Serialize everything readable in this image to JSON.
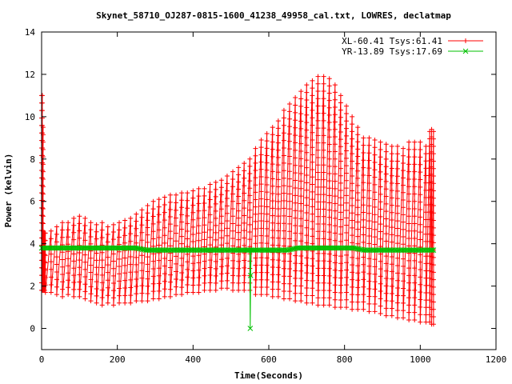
{
  "chart_data": {
    "type": "line",
    "title": "Skynet_58710_OJ287-0815-1600_41238_49958_cal.txt, LOWRES, declatmap",
    "xlabel": "Time(Seconds)",
    "ylabel": "Power (kelvin)",
    "xlim": [
      0,
      1200
    ],
    "ylim": [
      -1,
      14
    ],
    "x_ticks": [
      "0",
      "200",
      "400",
      "600",
      "800",
      "1000",
      "1200"
    ],
    "y_ticks": [
      "0",
      "2",
      "4",
      "6",
      "8",
      "10",
      "12",
      "14"
    ],
    "grid": false,
    "legend_position": "top-right",
    "series": [
      {
        "name": "XL-60.41 Tsys:61.41",
        "color": "#ff0000",
        "marker": "plus",
        "x": [
          0,
          2,
          4,
          6,
          8,
          10,
          25,
          40,
          55,
          70,
          85,
          100,
          115,
          130,
          145,
          160,
          175,
          190,
          205,
          220,
          235,
          250,
          265,
          280,
          295,
          310,
          325,
          340,
          355,
          370,
          385,
          400,
          415,
          430,
          445,
          460,
          475,
          490,
          505,
          520,
          535,
          550,
          565,
          580,
          595,
          610,
          625,
          640,
          655,
          670,
          685,
          700,
          715,
          730,
          745,
          760,
          775,
          790,
          805,
          820,
          835,
          850,
          865,
          880,
          895,
          910,
          925,
          940,
          955,
          970,
          985,
          1000,
          1015,
          1025,
          1030,
          1035
        ],
        "low": [
          1.8,
          1.8,
          1.8,
          1.8,
          1.8,
          1.7,
          1.7,
          1.6,
          1.5,
          1.6,
          1.5,
          1.5,
          1.4,
          1.3,
          1.2,
          1.1,
          1.2,
          1.1,
          1.2,
          1.2,
          1.2,
          1.3,
          1.3,
          1.3,
          1.4,
          1.4,
          1.5,
          1.5,
          1.6,
          1.6,
          1.7,
          1.7,
          1.7,
          1.8,
          1.8,
          1.8,
          1.9,
          1.9,
          1.8,
          1.8,
          1.8,
          1.8,
          1.6,
          1.6,
          1.6,
          1.5,
          1.5,
          1.4,
          1.4,
          1.3,
          1.3,
          1.2,
          1.2,
          1.1,
          1.1,
          1.1,
          1.0,
          1.0,
          1.0,
          0.9,
          0.9,
          0.9,
          0.8,
          0.8,
          0.7,
          0.6,
          0.6,
          0.5,
          0.5,
          0.4,
          0.4,
          0.3,
          0.3,
          0.3,
          0.2,
          0.2
        ],
        "high": [
          11.0,
          11.0,
          9.5,
          4.5,
          4.5,
          4.5,
          4.6,
          4.8,
          5.0,
          5.0,
          5.2,
          5.3,
          5.2,
          5.0,
          4.9,
          5.0,
          4.8,
          4.9,
          5.0,
          5.1,
          5.2,
          5.4,
          5.6,
          5.8,
          6.0,
          6.1,
          6.2,
          6.3,
          6.3,
          6.4,
          6.4,
          6.5,
          6.6,
          6.6,
          6.8,
          6.9,
          7.0,
          7.2,
          7.4,
          7.6,
          7.8,
          8.0,
          8.5,
          8.9,
          9.2,
          9.5,
          9.8,
          10.3,
          10.6,
          10.9,
          11.2,
          11.5,
          11.7,
          11.9,
          11.9,
          11.8,
          11.5,
          11.0,
          10.5,
          10.0,
          9.5,
          9.0,
          9.0,
          8.9,
          8.8,
          8.7,
          8.6,
          8.6,
          8.5,
          8.8,
          8.8,
          8.8,
          8.6,
          9.3,
          9.4,
          9.3
        ]
      },
      {
        "name": "YR-13.89 Tsys:17.69",
        "color": "#00c000",
        "marker": "cross",
        "x": [
          0,
          25,
          50,
          75,
          100,
          125,
          150,
          175,
          200,
          225,
          250,
          275,
          300,
          325,
          350,
          375,
          400,
          425,
          450,
          475,
          500,
          525,
          540,
          550,
          551,
          552,
          553,
          560,
          575,
          600,
          625,
          650,
          675,
          700,
          725,
          750,
          775,
          800,
          825,
          850,
          875,
          900,
          925,
          950,
          975,
          1000,
          1025,
          1035
        ],
        "y": [
          3.8,
          3.8,
          3.8,
          3.8,
          3.8,
          3.8,
          3.8,
          3.8,
          3.8,
          3.8,
          3.8,
          3.7,
          3.7,
          3.7,
          3.7,
          3.7,
          3.7,
          3.7,
          3.7,
          3.7,
          3.7,
          3.7,
          3.7,
          3.7,
          0.0,
          2.5,
          3.7,
          3.7,
          3.7,
          3.7,
          3.7,
          3.7,
          3.8,
          3.8,
          3.8,
          3.8,
          3.8,
          3.8,
          3.8,
          3.7,
          3.7,
          3.7,
          3.7,
          3.7,
          3.7,
          3.7,
          3.7,
          3.7
        ]
      }
    ]
  }
}
